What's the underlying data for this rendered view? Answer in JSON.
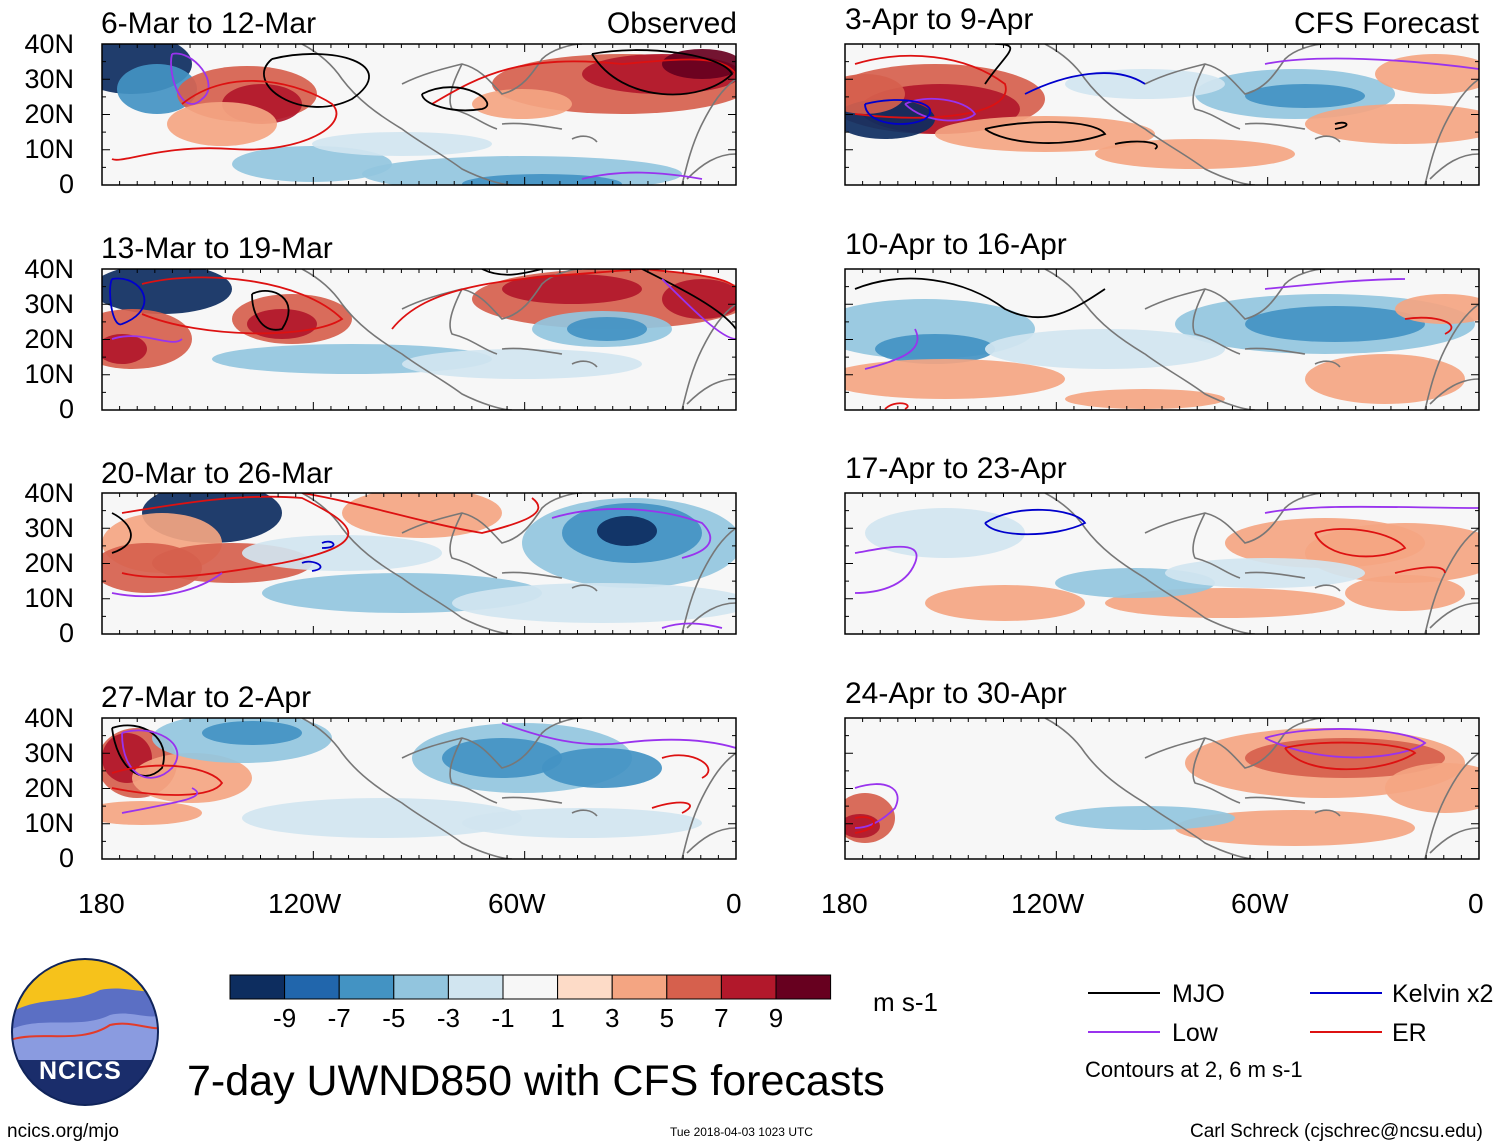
{
  "figure": {
    "title": "7-day UWND850 with CFS forecasts",
    "footer_left": "ncics.org/mjo",
    "footer_center": "Tue 2018-04-03 1023 UTC",
    "footer_right": "Carl Schreck (cjschrec@ncsu.edu)"
  },
  "logo": {
    "text": "NCICS"
  },
  "columns": {
    "left": "Observed",
    "right": "CFS Forecast"
  },
  "axes": {
    "lat_labels": [
      "40N",
      "30N",
      "20N",
      "10N",
      "0"
    ],
    "lon_labels": [
      "180",
      "120W",
      "60W",
      "0"
    ],
    "lat_range": [
      0,
      40
    ],
    "lon_range": [
      -180,
      0
    ]
  },
  "panels": [
    {
      "title": "6-Mar to 12-Mar"
    },
    {
      "title": "13-Mar to 19-Mar"
    },
    {
      "title": "20-Mar to 26-Mar"
    },
    {
      "title": "27-Mar to 2-Apr"
    },
    {
      "title": "3-Apr to 9-Apr"
    },
    {
      "title": "10-Apr to 16-Apr"
    },
    {
      "title": "17-Apr to 23-Apr"
    },
    {
      "title": "24-Apr to 30-Apr"
    }
  ],
  "colorbar": {
    "unit": "m s-1",
    "labels": [
      "-9",
      "-7",
      "-5",
      "-3",
      "-1",
      "1",
      "3",
      "5",
      "7",
      "9"
    ],
    "colors": [
      "#0d2d5f",
      "#2166ac",
      "#4393c3",
      "#92c5de",
      "#d1e5f0",
      "#f7f7f7",
      "#fddbc7",
      "#f4a582",
      "#d6604d",
      "#b2182b",
      "#67001f"
    ]
  },
  "legend": {
    "items": [
      {
        "label": "MJO",
        "color": "#000000"
      },
      {
        "label": "Kelvin x2",
        "color": "#0000cc"
      },
      {
        "label": "Low",
        "color": "#9933ee"
      },
      {
        "label": "ER",
        "color": "#dd1111"
      }
    ],
    "note": "Contours at 2, 6 m s-1"
  }
}
